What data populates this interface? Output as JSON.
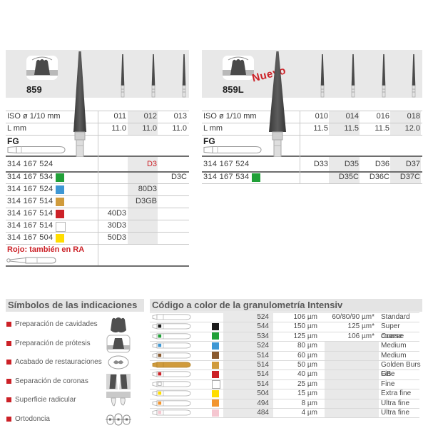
{
  "colors": {
    "accent_red": "#cc2127",
    "green": "#21a038",
    "blue": "#3e97d4",
    "gold": "#d09b3c",
    "red": "#cc2127",
    "white": "#ffffff",
    "yellow": "#ffdd00",
    "black": "#1a1a1a",
    "brown": "#8a5a2e",
    "orange": "#f2952f",
    "pink": "#f5c6d0"
  },
  "panels": [
    {
      "title": "859",
      "badge": "",
      "iso_label": "ISO ø 1/10 mm",
      "l_label": "L mm",
      "shank_label": "FG",
      "iso_values": [
        "011",
        "012",
        "013"
      ],
      "l_values": [
        "11.0",
        "11.0",
        "11.0"
      ],
      "code_rows": [
        {
          "code": "314 167 524",
          "color": "",
          "cells": [
            "",
            "D3",
            ""
          ],
          "red_cells": [
            1
          ]
        },
        {
          "code": "314 167 534",
          "color": "green",
          "cells": [
            "",
            "",
            "D3C"
          ]
        },
        {
          "code": "314 167 524",
          "color": "blue",
          "cells": [
            "",
            "80D3",
            ""
          ]
        },
        {
          "code": "314 167 514",
          "color": "gold",
          "cells": [
            "",
            "D3GB",
            ""
          ]
        },
        {
          "code": "314 167 514",
          "color": "red",
          "cells": [
            "40D3",
            "",
            ""
          ]
        },
        {
          "code": "314 167 514",
          "color": "white",
          "cells": [
            "30D3",
            "",
            ""
          ]
        },
        {
          "code": "314 167 504",
          "color": "yellow",
          "cells": [
            "50D3",
            "",
            ""
          ]
        }
      ],
      "note": "Rojo: también en RA"
    },
    {
      "title": "859L",
      "badge": "Nuevo",
      "iso_label": "ISO ø 1/10 mm",
      "l_label": "L mm",
      "shank_label": "FG",
      "iso_values": [
        "010",
        "014",
        "016",
        "018"
      ],
      "l_values": [
        "11.5",
        "11.5",
        "11.5",
        "12.0"
      ],
      "code_rows": [
        {
          "code": "314 167 524",
          "color": "",
          "cells": [
            "D33",
            "D35",
            "D36",
            "D37"
          ],
          "red_cells": []
        },
        {
          "code": "314 167 534",
          "color": "green",
          "cells": [
            "",
            "D35C",
            "D36C",
            "D37C"
          ]
        }
      ],
      "note": ""
    }
  ],
  "symbols": {
    "title": "Símbolos de las indicaciones",
    "items": [
      {
        "label": "Preparación de cavidades",
        "icon": "cavity-prep-icon"
      },
      {
        "label": "Preparación de prótesis",
        "icon": "prosthesis-prep-icon"
      },
      {
        "label": "Acabado de restauraciones",
        "icon": "restoration-finishing-icon"
      },
      {
        "label": "Separación de coronas",
        "icon": "crown-separation-icon"
      },
      {
        "label": "Superficie radicular",
        "icon": "root-surface-icon"
      },
      {
        "label": "Ortodoncia",
        "icon": "orthodontics-icon"
      }
    ]
  },
  "grit": {
    "title": "Código a color de la granulometría Intensiv",
    "rows": [
      {
        "color": "",
        "code": "524",
        "grain": "106 µm",
        "extra": "60/80/90 µm*",
        "name": "Standard",
        "full_fill": false
      },
      {
        "color": "black",
        "code": "544",
        "grain": "150 µm",
        "extra": "125 µm*",
        "name": "Super coarse",
        "full_fill": false
      },
      {
        "color": "green",
        "code": "534",
        "grain": "125 µm",
        "extra": "106 µm*",
        "name": "Coarse",
        "full_fill": false
      },
      {
        "color": "blue",
        "code": "524",
        "grain": "80 µm",
        "extra": "",
        "name": "Medium",
        "full_fill": false
      },
      {
        "color": "brown",
        "code": "514",
        "grain": "60 µm",
        "extra": "",
        "name": "Medium",
        "full_fill": false
      },
      {
        "color": "gold",
        "code": "514",
        "grain": "50 µm",
        "extra": "",
        "name": "Golden Burs GB",
        "full_fill": true
      },
      {
        "color": "red",
        "code": "514",
        "grain": "40 µm",
        "extra": "",
        "name": "Fine",
        "full_fill": false
      },
      {
        "color": "white",
        "code": "514",
        "grain": "25 µm",
        "extra": "",
        "name": "Fine",
        "full_fill": false
      },
      {
        "color": "yellow",
        "code": "504",
        "grain": "15 µm",
        "extra": "",
        "name": "Extra fine",
        "full_fill": false
      },
      {
        "color": "orange",
        "code": "494",
        "grain": "8 µm",
        "extra": "",
        "name": "Ultra fine",
        "full_fill": false
      },
      {
        "color": "pink",
        "code": "484",
        "grain": "4 µm",
        "extra": "",
        "name": "Ultra fine",
        "full_fill": false
      }
    ]
  }
}
